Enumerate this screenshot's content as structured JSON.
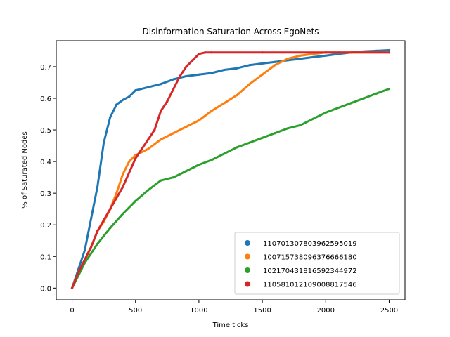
{
  "chart_data": {
    "type": "scatter",
    "title": "Disinformation Saturation Across EgoNets",
    "xlabel": "Time ticks",
    "ylabel": "% of Saturated Nodes",
    "xlim": [
      -125,
      2625
    ],
    "ylim": [
      -0.037,
      0.782
    ],
    "xticks": [
      0,
      500,
      1000,
      1500,
      2000,
      2500
    ],
    "yticks": [
      0.0,
      0.1,
      0.2,
      0.3,
      0.4,
      0.5,
      0.6,
      0.7
    ],
    "xtick_labels": [
      "0",
      "500",
      "1000",
      "1500",
      "2000",
      "2500"
    ],
    "ytick_labels": [
      "0.0",
      "0.1",
      "0.2",
      "0.3",
      "0.4",
      "0.5",
      "0.6",
      "0.7"
    ],
    "grid": false,
    "legend_position": "lower-right",
    "series": [
      {
        "name": "110701307803962595019",
        "color": "#1f77b4",
        "points": [
          [
            0,
            0.0
          ],
          [
            50,
            0.06
          ],
          [
            100,
            0.12
          ],
          [
            150,
            0.22
          ],
          [
            200,
            0.32
          ],
          [
            250,
            0.46
          ],
          [
            300,
            0.54
          ],
          [
            350,
            0.58
          ],
          [
            400,
            0.595
          ],
          [
            450,
            0.605
          ],
          [
            500,
            0.625
          ],
          [
            600,
            0.635
          ],
          [
            700,
            0.645
          ],
          [
            800,
            0.66
          ],
          [
            900,
            0.67
          ],
          [
            1000,
            0.675
          ],
          [
            1100,
            0.68
          ],
          [
            1200,
            0.69
          ],
          [
            1300,
            0.695
          ],
          [
            1400,
            0.705
          ],
          [
            1500,
            0.71
          ],
          [
            1600,
            0.715
          ],
          [
            1700,
            0.72
          ],
          [
            1800,
            0.725
          ],
          [
            1900,
            0.73
          ],
          [
            2000,
            0.735
          ],
          [
            2100,
            0.74
          ],
          [
            2200,
            0.745
          ],
          [
            2300,
            0.748
          ],
          [
            2400,
            0.75
          ],
          [
            2500,
            0.752
          ]
        ]
      },
      {
        "name": "100715738096376666180",
        "color": "#ff7f0e",
        "points": [
          [
            0,
            0.0
          ],
          [
            50,
            0.05
          ],
          [
            100,
            0.09
          ],
          [
            150,
            0.13
          ],
          [
            200,
            0.18
          ],
          [
            250,
            0.21
          ],
          [
            300,
            0.25
          ],
          [
            350,
            0.3
          ],
          [
            400,
            0.36
          ],
          [
            450,
            0.4
          ],
          [
            500,
            0.42
          ],
          [
            600,
            0.44
          ],
          [
            700,
            0.47
          ],
          [
            800,
            0.49
          ],
          [
            900,
            0.51
          ],
          [
            1000,
            0.53
          ],
          [
            1100,
            0.56
          ],
          [
            1200,
            0.585
          ],
          [
            1300,
            0.61
          ],
          [
            1400,
            0.645
          ],
          [
            1500,
            0.675
          ],
          [
            1600,
            0.705
          ],
          [
            1700,
            0.725
          ],
          [
            1800,
            0.735
          ],
          [
            1900,
            0.74
          ],
          [
            2000,
            0.745
          ],
          [
            2100,
            0.745
          ],
          [
            2200,
            0.745
          ],
          [
            2300,
            0.745
          ],
          [
            2400,
            0.745
          ],
          [
            2500,
            0.745
          ]
        ]
      },
      {
        "name": "102170431816592344972",
        "color": "#2ca02c",
        "points": [
          [
            0,
            0.0
          ],
          [
            50,
            0.04
          ],
          [
            100,
            0.08
          ],
          [
            150,
            0.11
          ],
          [
            200,
            0.14
          ],
          [
            300,
            0.19
          ],
          [
            400,
            0.235
          ],
          [
            500,
            0.275
          ],
          [
            600,
            0.31
          ],
          [
            700,
            0.34
          ],
          [
            800,
            0.35
          ],
          [
            900,
            0.37
          ],
          [
            1000,
            0.39
          ],
          [
            1100,
            0.405
          ],
          [
            1200,
            0.425
          ],
          [
            1300,
            0.445
          ],
          [
            1400,
            0.46
          ],
          [
            1500,
            0.475
          ],
          [
            1600,
            0.49
          ],
          [
            1700,
            0.505
          ],
          [
            1800,
            0.515
          ],
          [
            1900,
            0.535
          ],
          [
            2000,
            0.555
          ],
          [
            2100,
            0.57
          ],
          [
            2200,
            0.585
          ],
          [
            2300,
            0.6
          ],
          [
            2400,
            0.615
          ],
          [
            2500,
            0.63
          ]
        ]
      },
      {
        "name": "110581012109008817546",
        "color": "#d62728",
        "points": [
          [
            0,
            0.0
          ],
          [
            50,
            0.05
          ],
          [
            100,
            0.09
          ],
          [
            150,
            0.13
          ],
          [
            200,
            0.18
          ],
          [
            300,
            0.25
          ],
          [
            400,
            0.32
          ],
          [
            500,
            0.41
          ],
          [
            550,
            0.44
          ],
          [
            600,
            0.47
          ],
          [
            650,
            0.5
          ],
          [
            700,
            0.56
          ],
          [
            750,
            0.59
          ],
          [
            800,
            0.63
          ],
          [
            850,
            0.67
          ],
          [
            900,
            0.7
          ],
          [
            950,
            0.72
          ],
          [
            1000,
            0.74
          ],
          [
            1050,
            0.745
          ],
          [
            1100,
            0.745
          ],
          [
            1500,
            0.745
          ],
          [
            2000,
            0.745
          ],
          [
            2500,
            0.745
          ]
        ]
      }
    ]
  }
}
